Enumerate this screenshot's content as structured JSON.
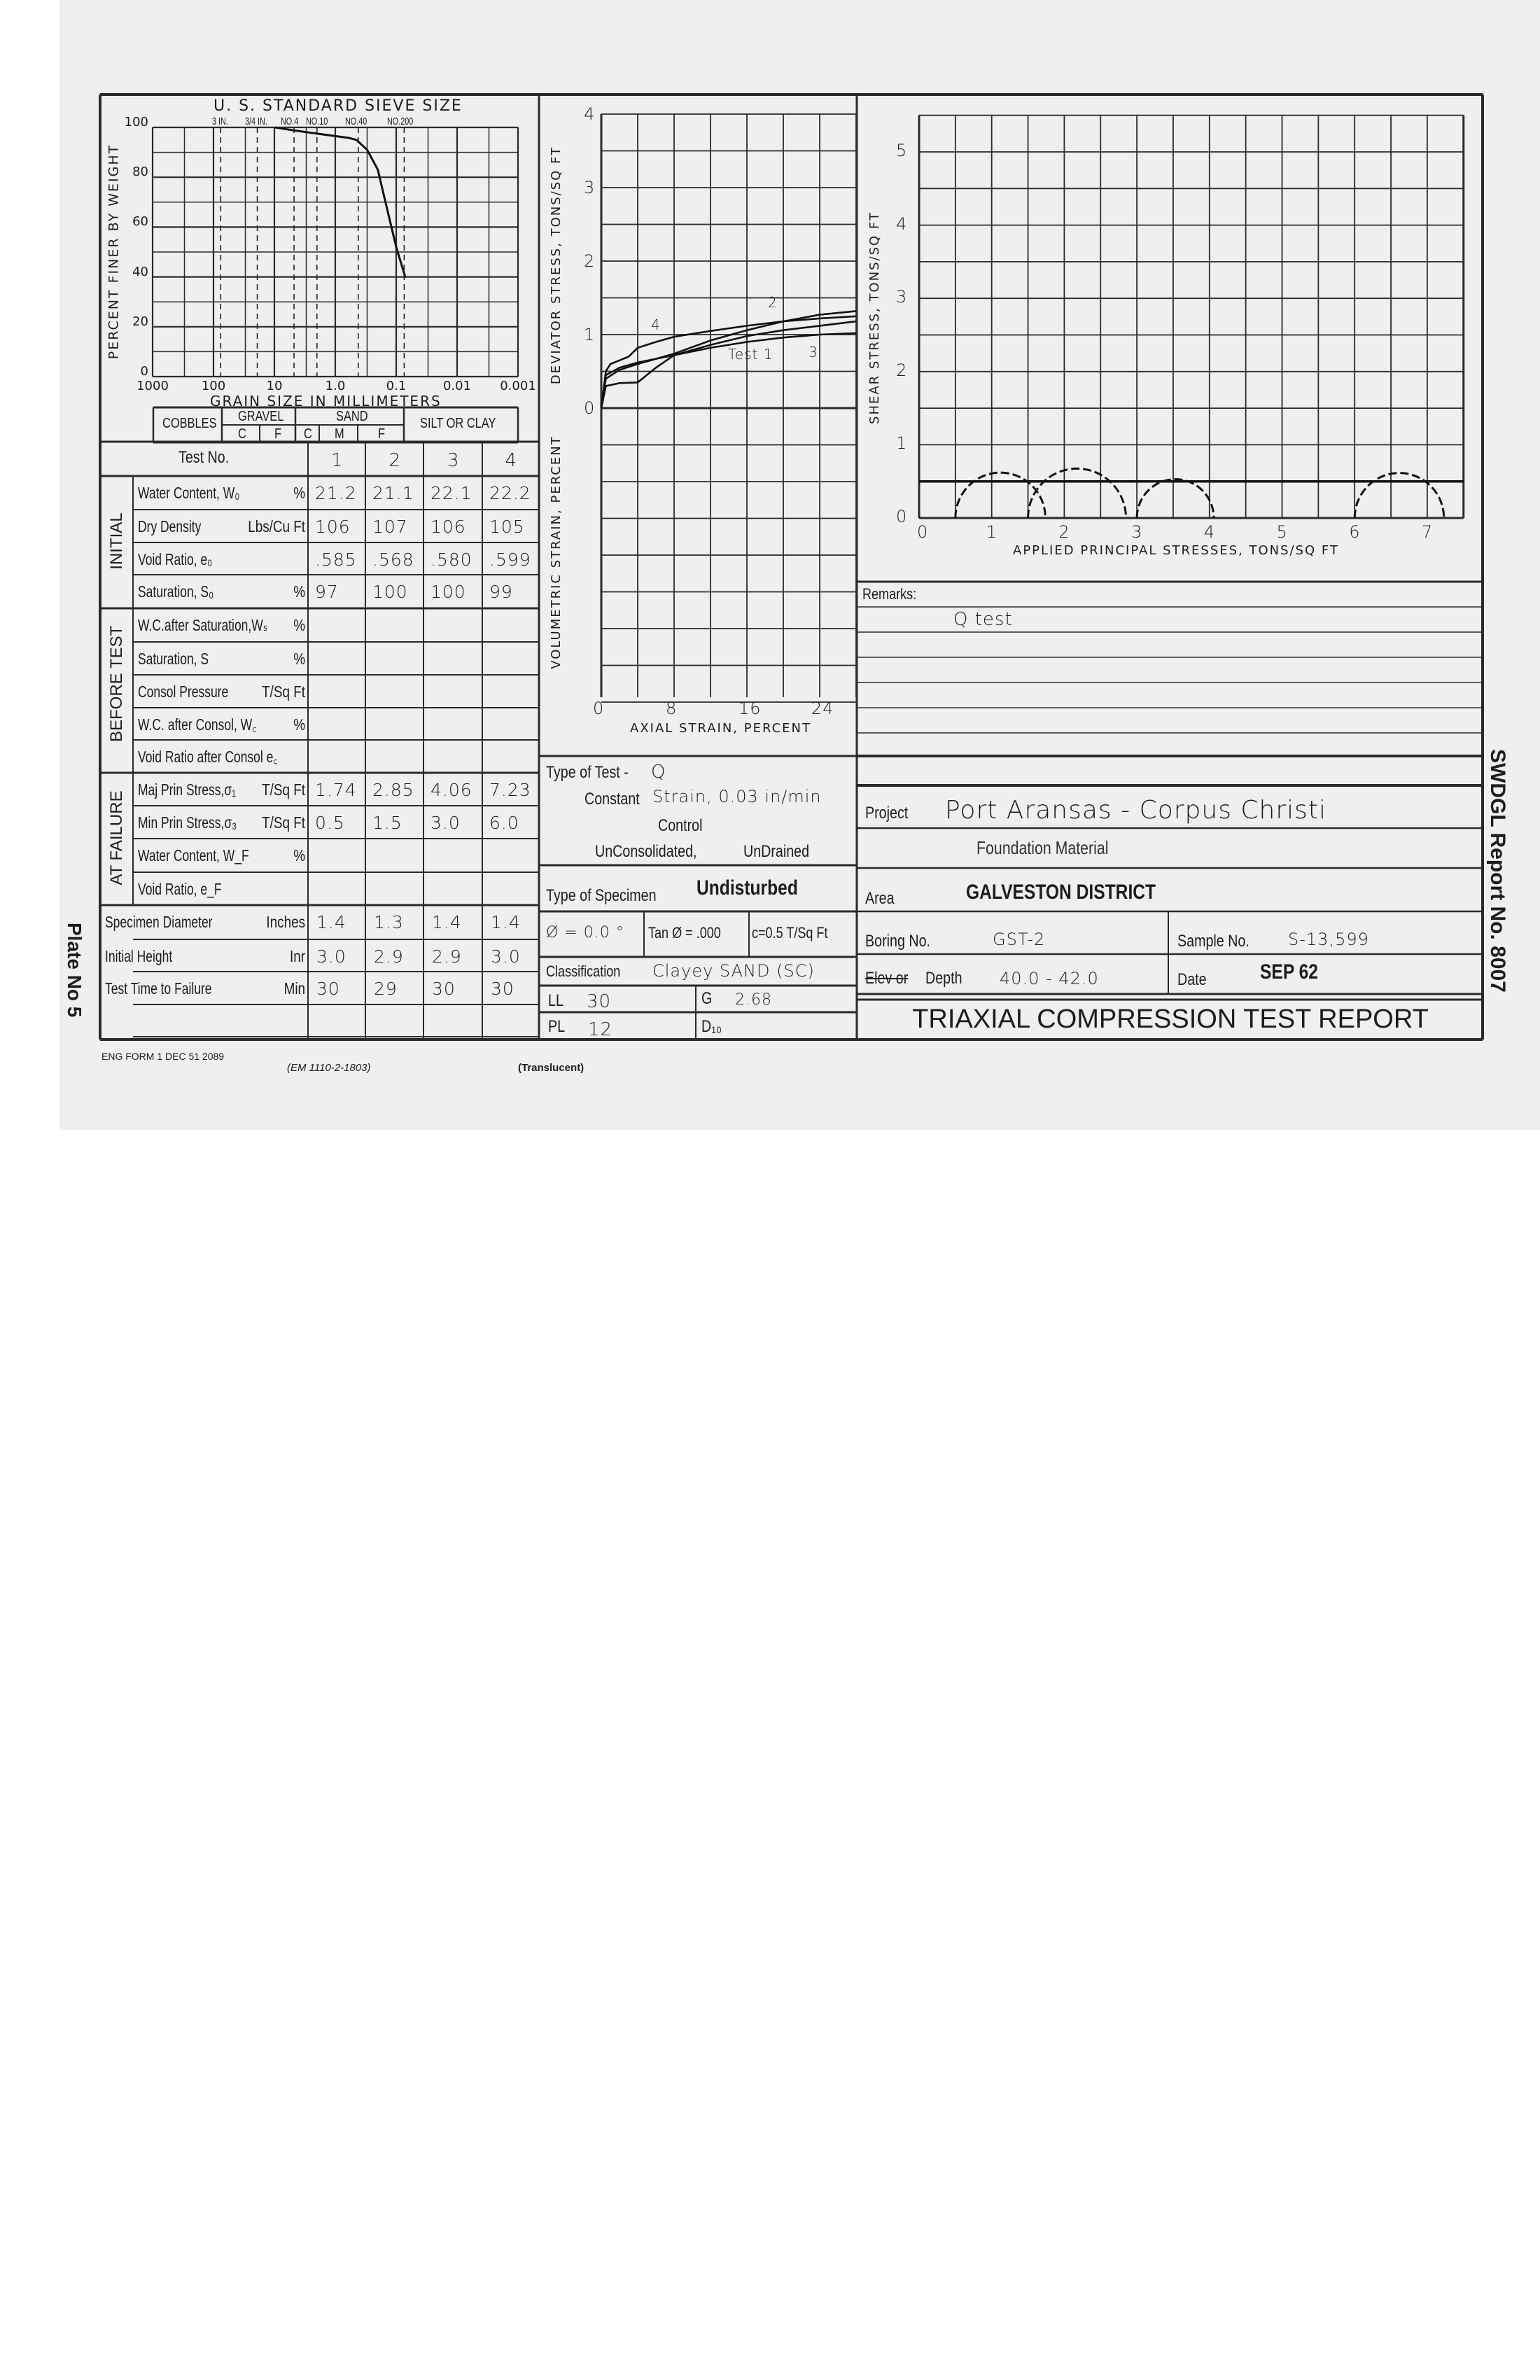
{
  "grain_chart": {
    "sieve_title": "U. S. STANDARD SIEVE SIZE",
    "sieves": [
      {
        "label": "3 IN.",
        "mm": 76.2
      },
      {
        "label": "3/4 IN.",
        "mm": 19.1
      },
      {
        "label": "NO.4",
        "mm": 4.76
      },
      {
        "label": "NO.10",
        "mm": 2.0
      },
      {
        "label": "NO.40",
        "mm": 0.42
      },
      {
        "label": "NO.200",
        "mm": 0.074
      }
    ],
    "ylabel": "PERCENT FINER BY WEIGHT",
    "xlabel": "GRAIN SIZE IN MILLIMETERS",
    "y_ticks": [
      "100",
      "80",
      "60",
      "40",
      "20",
      "0"
    ],
    "x_ticks": [
      "1000",
      "100",
      "10",
      "1.0",
      "0.1",
      "0.01",
      "0.001"
    ],
    "classification": {
      "cobbles": "COBBLES",
      "gravel": "GRAVEL",
      "sand": "SAND",
      "silt": "SILT OR CLAY",
      "gravel_sub": [
        "C",
        "F"
      ],
      "sand_sub": [
        "C",
        "M",
        "F"
      ]
    }
  },
  "chart_data": [
    {
      "type": "line",
      "xscale": "log",
      "xlim": [
        1000,
        0.001
      ],
      "ylim": [
        0,
        100
      ],
      "grid": true,
      "xlabel": "GRAIN SIZE IN MILLIMETERS",
      "ylabel": "PERCENT FINER BY WEIGHT",
      "x": [
        9.8,
        4.76,
        2.0,
        0.6,
        0.45,
        0.3,
        0.2,
        0.15,
        0.1,
        0.071
      ],
      "y": [
        100,
        98.8,
        97.5,
        95.8,
        95,
        91,
        83,
        70,
        52,
        40
      ]
    },
    {
      "type": "line",
      "xlabel": "AXIAL STRAIN, PERCENT",
      "ylabel": "DEVIATOR STRESS, TONS/SQ FT",
      "ylabel2": "VOLUMETRIC STRAIN, PERCENT",
      "xlim": [
        0,
        28
      ],
      "ylim": [
        -4,
        4
      ],
      "grid": true,
      "x_ticks": [
        "0",
        "8",
        "16",
        "24"
      ],
      "y_ticks": [
        "4",
        "3",
        "2",
        "1",
        "0"
      ],
      "series": [
        {
          "name": "Test 1",
          "x": [
            0,
            0.5,
            2,
            4,
            6,
            8,
            12,
            16,
            20,
            24,
            28
          ],
          "y": [
            0,
            0.3,
            0.34,
            0.35,
            0.55,
            0.72,
            0.86,
            0.98,
            1.06,
            1.12,
            1.18
          ]
        },
        {
          "name": "2",
          "x": [
            0,
            0.5,
            2,
            4,
            8,
            12,
            16,
            20,
            24,
            28
          ],
          "y": [
            0,
            0.4,
            0.52,
            0.6,
            0.74,
            0.92,
            1.06,
            1.18,
            1.27,
            1.32
          ]
        },
        {
          "name": "3",
          "x": [
            0,
            0.5,
            2,
            4,
            8,
            12,
            16,
            20,
            24,
            28
          ],
          "y": [
            0,
            0.45,
            0.55,
            0.62,
            0.72,
            0.82,
            0.9,
            0.96,
            1.0,
            1.02
          ]
        },
        {
          "name": "4",
          "x": [
            0,
            0.5,
            1,
            2,
            3,
            4,
            6,
            8,
            12,
            16,
            20,
            24,
            28
          ],
          "y": [
            0,
            0.5,
            0.6,
            0.65,
            0.7,
            0.82,
            0.9,
            0.97,
            1.05,
            1.12,
            1.18,
            1.22,
            1.25
          ]
        }
      ]
    },
    {
      "type": "mohr",
      "xlabel": "APPLIED PRINCIPAL STRESSES, TONS/SQ FT",
      "ylabel": "SHEAR STRESS, TONS/SQ FT",
      "xlim": [
        0,
        7.5
      ],
      "ylim": [
        0,
        5.5
      ],
      "grid": true,
      "x_ticks": [
        "0",
        "1",
        "2",
        "3",
        "4",
        "5",
        "6",
        "7"
      ],
      "y_ticks": [
        "5",
        "4",
        "3",
        "2",
        "1",
        "0"
      ],
      "circles": [
        {
          "sigma3": 0.5,
          "sigma1": 1.74
        },
        {
          "sigma3": 1.5,
          "sigma1": 2.85
        },
        {
          "sigma3": 3.0,
          "sigma1": 4.06
        },
        {
          "sigma3": 6.0,
          "sigma1": 7.23
        }
      ],
      "envelope": {
        "c": 0.5,
        "phi_deg": 0.0
      }
    }
  ],
  "deviator_labels": {
    "test1": "Test 1",
    "t2": "2",
    "t3": "3",
    "t4": "4"
  },
  "table": {
    "header_label": "Test No.",
    "tests": [
      "1",
      "2",
      "3",
      "4"
    ],
    "groups": [
      {
        "name": "INITIAL",
        "rows": [
          {
            "label": "Water Content, W₀",
            "unit": "%",
            "values": [
              "21.2",
              "21.1",
              "22.1",
              "22.2"
            ]
          },
          {
            "label": "Dry Density",
            "unit": "Lbs/Cu Ft",
            "values": [
              "106",
              "107",
              "106",
              "105"
            ]
          },
          {
            "label": "Void Ratio, e₀",
            "unit": "",
            "values": [
              ".585",
              ".568",
              ".580",
              ".599"
            ]
          },
          {
            "label": "Saturation, S₀",
            "unit": "%",
            "values": [
              "97",
              "100",
              "100",
              "99"
            ]
          }
        ]
      },
      {
        "name": "BEFORE TEST",
        "rows": [
          {
            "label": "W.C.after Saturation,Wₛ",
            "unit": "%",
            "values": [
              "",
              "",
              "",
              ""
            ]
          },
          {
            "label": "Saturation, S",
            "unit": "%",
            "values": [
              "",
              "",
              "",
              ""
            ]
          },
          {
            "label": "Consol Pressure",
            "unit": "T/Sq Ft",
            "values": [
              "",
              "",
              "",
              ""
            ]
          },
          {
            "label": "W.C. after Consol, W꜀",
            "unit": "%",
            "values": [
              "",
              "",
              "",
              ""
            ]
          },
          {
            "label": "Void Ratio after Consol e꜀",
            "unit": "",
            "values": [
              "",
              "",
              "",
              ""
            ]
          }
        ]
      },
      {
        "name": "AT FAILURE",
        "rows": [
          {
            "label": "Maj Prin Stress,σ₁",
            "unit": "T/Sq Ft",
            "values": [
              "1.74",
              "2.85",
              "4.06",
              "7.23"
            ]
          },
          {
            "label": "Min Prin Stress,σ₃",
            "unit": "T/Sq Ft",
            "values": [
              "0.5",
              "1.5",
              "3.0",
              "6.0"
            ]
          },
          {
            "label": "Water Content, W_F",
            "unit": "%",
            "values": [
              "",
              "",
              "",
              ""
            ]
          },
          {
            "label": "Void Ratio, e_F",
            "unit": "",
            "values": [
              "",
              "",
              "",
              ""
            ]
          }
        ]
      }
    ],
    "footer_rows": [
      {
        "label": "Specimen Diameter",
        "unit": "Inches",
        "values": [
          "1.4",
          "1.3",
          "1.4",
          "1.4"
        ]
      },
      {
        "label": "Initial Height",
        "unit": "Inr",
        "values": [
          "3.0",
          "2.9",
          "2.9",
          "3.0"
        ]
      },
      {
        "label": "Test Time to Failure",
        "unit": "Min",
        "values": [
          "30",
          "29",
          "30",
          "30"
        ]
      },
      {
        "label": "",
        "unit": "",
        "values": [
          "",
          "",
          "",
          ""
        ]
      }
    ]
  },
  "test_info": {
    "type_of_test_label": "Type of Test -",
    "type_of_test": "Q",
    "constant_label": "Constant",
    "constant_value": "Strain, 0.03 in/min",
    "control_label": "Control",
    "consolidated": "UnConsolidated,",
    "drained": "UnDrained",
    "specimen_label": "Type of Specimen",
    "specimen_value": "Undisturbed",
    "phi": "Ø = 0.0 °",
    "tan_phi": "Tan Ø = .000",
    "cohesion": "c=0.5 T/Sq Ft",
    "classification_label": "Classification",
    "classification_value": "Clayey SAND (SC)",
    "ll_label": "LL",
    "ll": "30",
    "pl_label": "PL",
    "pl": "12",
    "g_label": "G",
    "g": "2.68",
    "d10_label": "D₁₀"
  },
  "remarks": {
    "label": "Remarks:",
    "text": "Q test"
  },
  "project": {
    "project_label": "Project",
    "project_value": "Port Aransas - Corpus Christi",
    "subtitle": "Foundation Material",
    "area_label": "Area",
    "area_value": "GALVESTON DISTRICT",
    "boring_label": "Boring No.",
    "boring_value": "GST-2",
    "sample_label": "Sample No.",
    "sample_value": "S-13,599",
    "elev_struck": "Elev or",
    "depth_label": "Depth",
    "depth_value": "40.0 - 42.0",
    "date_label": "Date",
    "date_value": "SEP 62",
    "report_title": "TRIAXIAL COMPRESSION TEST REPORT"
  },
  "margins": {
    "report_no": "SWDGL Report No. 8007",
    "plate": "Plate No 5",
    "form_no": "ENG FORM 1 DEC 51 2089",
    "em_ref": "(EM 1110-2-1803)",
    "translucent": "(Translucent)"
  }
}
